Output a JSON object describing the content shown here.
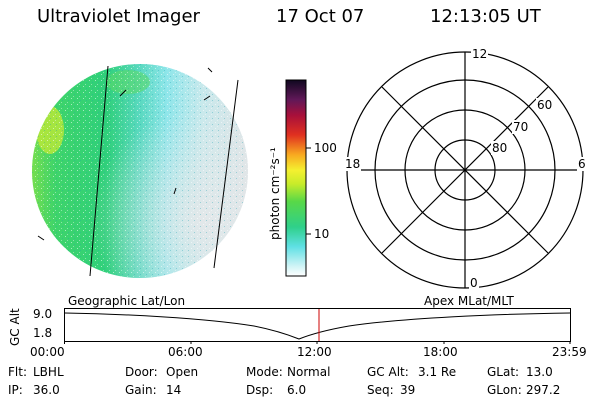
{
  "header": {
    "title": "Ultraviolet Imager",
    "date": "17 Oct 07",
    "time": "12:13:05 UT"
  },
  "colorbar": {
    "label": "photon cm⁻²s⁻¹",
    "ticks": [
      "100",
      "10"
    ],
    "scale": "log"
  },
  "polar_plot": {
    "mlt_labels": [
      "12",
      "18",
      "6",
      "0"
    ],
    "lat_labels": [
      "60",
      "70",
      "80"
    ]
  },
  "timeline": {
    "y_axis_label": "GC Alt",
    "y_ticks": [
      "9.0",
      "1.8"
    ],
    "left_label": "Geographic Lat/Lon",
    "right_label": "Apex MLat/MLT",
    "x_ticks": [
      "00:00",
      "06:00",
      "12:00",
      "18:00",
      "23:59"
    ],
    "marker_time": "12:13"
  },
  "status": {
    "rows": [
      [
        {
          "label": "Flt:",
          "value": "LBHL"
        },
        {
          "label": "Door:",
          "value": "Open"
        },
        {
          "label": "Mode:",
          "value": "Normal"
        },
        {
          "label": "GC Alt:",
          "value": "3.1 Re"
        },
        {
          "label": "GLat:",
          "value": "13.0"
        }
      ],
      [
        {
          "label": "IP:",
          "value": "36.0"
        },
        {
          "label": "Gain:",
          "value": "14"
        },
        {
          "label": "Dsp:",
          "value": "6.0"
        },
        {
          "label": "Seq:",
          "value": "39"
        },
        {
          "label": "GLon:",
          "value": "297.2"
        }
      ]
    ]
  },
  "colors": {
    "marker": "#cc0000",
    "image_green": "#2fd07a",
    "image_cyan": "#7fe6ea",
    "image_grey": "#d8dee2"
  }
}
